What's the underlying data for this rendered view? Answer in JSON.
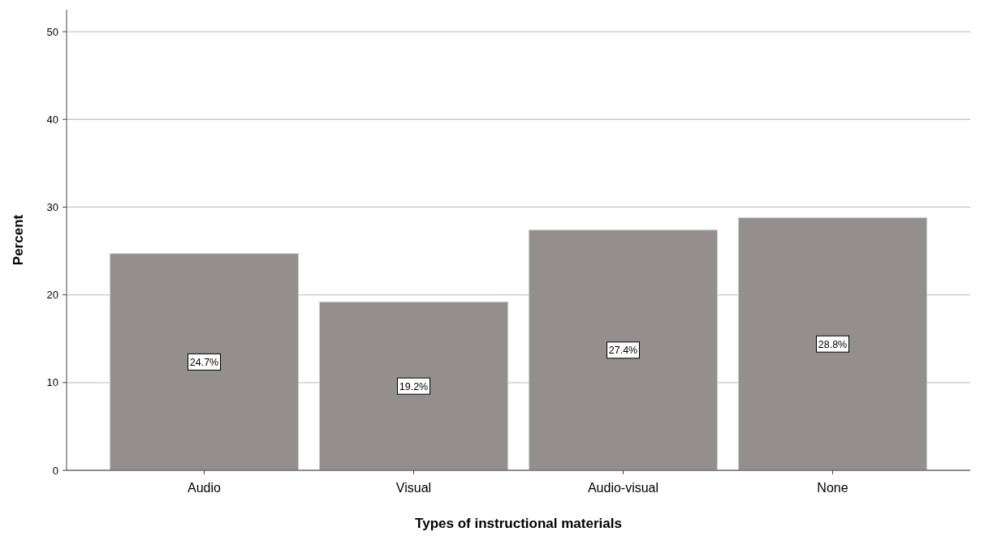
{
  "chart_data": {
    "type": "bar",
    "xlabel": "Types of instructional materials",
    "ylabel": "Percent",
    "categories": [
      "Audio",
      "Visual",
      "Audio-visual",
      "None"
    ],
    "values": [
      24.7,
      19.2,
      27.4,
      28.8
    ],
    "value_labels": [
      "24.7%",
      "19.2%",
      "27.4%",
      "28.8%"
    ],
    "color": "#948f8e",
    "ylim": [
      0,
      52.5
    ],
    "yticks": [
      0,
      10,
      20,
      30,
      40,
      50
    ],
    "grid": "y"
  }
}
